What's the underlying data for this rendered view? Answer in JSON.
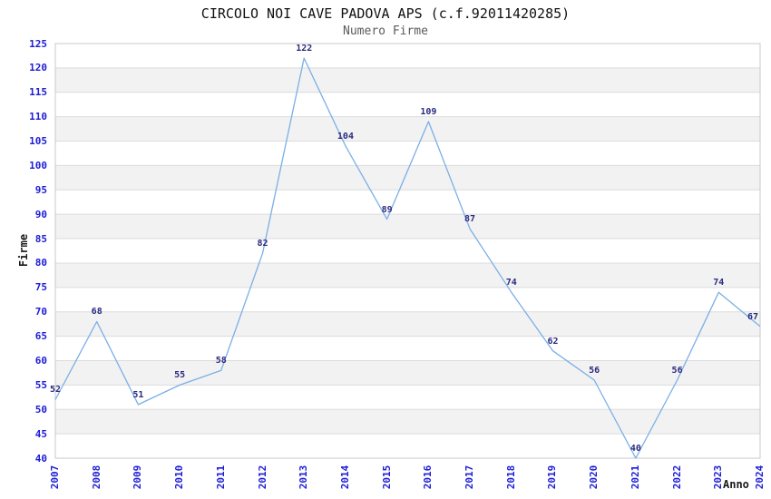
{
  "title": "CIRCOLO NOI CAVE PADOVA APS (c.f.92011420285)",
  "subtitle": "Numero Firme",
  "chart_data": {
    "type": "line",
    "title": "CIRCOLO NOI CAVE PADOVA APS (c.f.92011420285)",
    "subtitle": "Numero Firme",
    "xlabel": "Anno",
    "ylabel": "Firme",
    "categories": [
      "2007",
      "2008",
      "2009",
      "2010",
      "2011",
      "2012",
      "2013",
      "2014",
      "2015",
      "2016",
      "2017",
      "2018",
      "2019",
      "2020",
      "2021",
      "2022",
      "2023",
      "2024"
    ],
    "values": [
      52,
      68,
      51,
      55,
      58,
      82,
      122,
      104,
      89,
      109,
      87,
      74,
      62,
      56,
      40,
      56,
      74,
      67
    ],
    "yticks": [
      125,
      120,
      115,
      110,
      105,
      100,
      95,
      90,
      85,
      80,
      75,
      70,
      65,
      60,
      55,
      50,
      45,
      40
    ],
    "ylim": [
      40,
      125
    ],
    "grid": "horizontal",
    "banding": "alternating 5-unit horizontal bands",
    "legend_position": "none",
    "colors": {
      "line": "#7aafe6",
      "tick_label": "#1c1cd6",
      "value_label": "#2b2b80",
      "band_fill": "#f2f2f2",
      "gridline": "#dcdcdc",
      "frame": "#c8c8c8",
      "title": "#111111",
      "subtitle": "#5b5b5b"
    }
  }
}
